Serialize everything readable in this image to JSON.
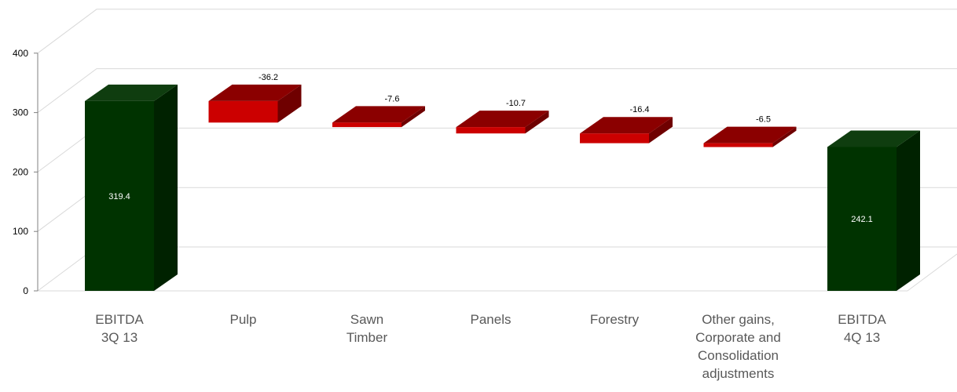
{
  "chart_data": {
    "type": "waterfall",
    "categories": [
      "EBITDA\n3Q 13",
      "Pulp",
      "Sawn\nTimber",
      "Panels",
      "Forestry",
      "Other gains,\nCorporate and\nConsolidation\nadjustments",
      "EBITDA\n4Q 13"
    ],
    "values": [
      319.4,
      -36.2,
      -7.6,
      -10.7,
      -16.4,
      -6.5,
      242.1
    ],
    "data_labels": [
      "319.4",
      "-36.2",
      "-7.6",
      "-10.7",
      "-16.4",
      "-6.5",
      "242.1"
    ],
    "kinds": [
      "total",
      "delta",
      "delta",
      "delta",
      "delta",
      "delta",
      "total"
    ],
    "yticks": [
      "0",
      "100",
      "200",
      "300",
      "400"
    ],
    "ylim": [
      0,
      400
    ],
    "grid": true,
    "three_d": true,
    "colors": {
      "total_front": "#003300",
      "total_top": "#0f3d0f",
      "total_side": "#002200",
      "delta_front": "#cc0000",
      "delta_top": "#8b0000",
      "delta_side": "#6f0000",
      "grid": "#d9d9d9",
      "axis": "#808080",
      "text": "#000000",
      "label_text": "#595959",
      "inside_label": "#ffffff"
    }
  }
}
